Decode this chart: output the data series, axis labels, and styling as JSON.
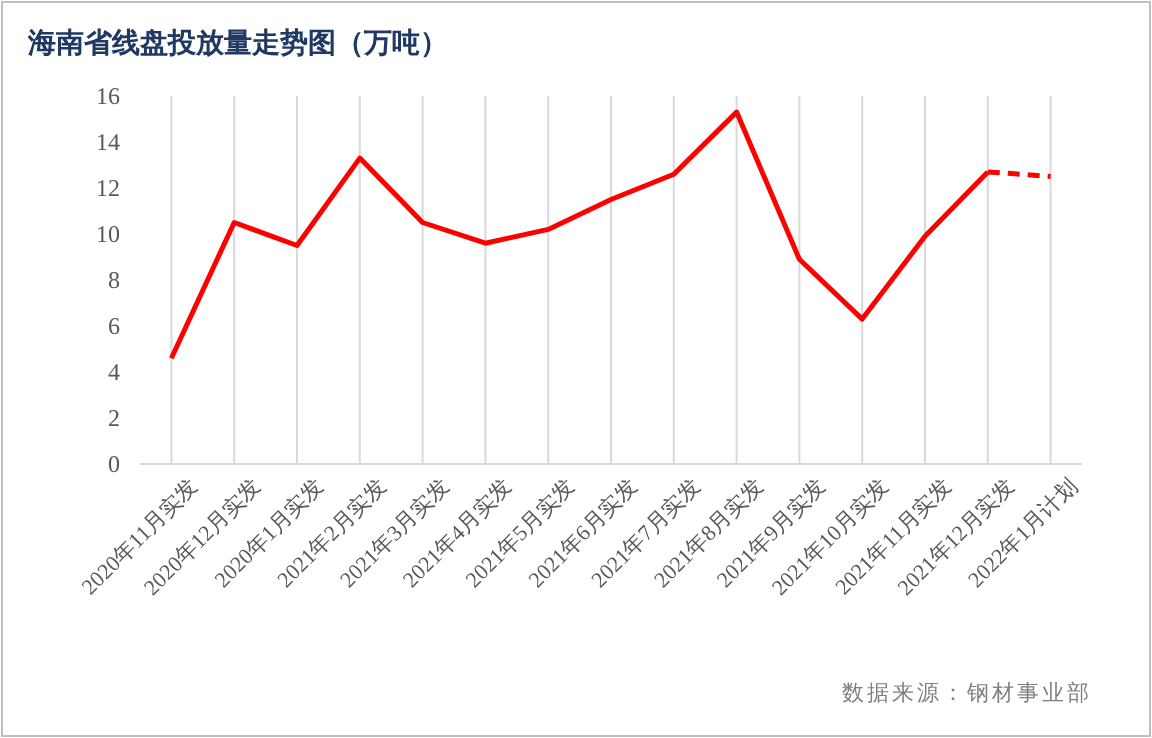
{
  "chart_data": {
    "type": "line",
    "title": "海南省线盘投放量走势图（万吨）",
    "categories": [
      "2020年11月实发",
      "2020年12月实发",
      "2020年1月实发",
      "2021年2月实发",
      "2021年3月实发",
      "2021年4月实发",
      "2021年5月实发",
      "2021年6月实发",
      "2021年7月实发",
      "2021年8月实发",
      "2021年9月实发",
      "2021年10月实发",
      "2021年11月实发",
      "2021年12月实发",
      "2022年1月计划"
    ],
    "series": [
      {
        "color": "#ff0000",
        "line_style": "solid",
        "values": [
          4.6,
          10.5,
          9.5,
          13.3,
          10.5,
          9.6,
          10.2,
          11.5,
          12.6,
          15.3,
          8.9,
          6.3,
          9.9,
          12.7,
          null
        ]
      },
      {
        "color": "#ff0000",
        "line_style": "dashed",
        "values": [
          null,
          null,
          null,
          null,
          null,
          null,
          null,
          null,
          null,
          null,
          null,
          null,
          null,
          12.7,
          12.5
        ]
      }
    ],
    "ylim": [
      0,
      16
    ],
    "yticks": [
      0,
      2,
      4,
      6,
      8,
      10,
      12,
      14,
      16
    ],
    "grid": "x",
    "marker": "none",
    "annotations": [
      "数据来源：钢材事业部"
    ]
  }
}
